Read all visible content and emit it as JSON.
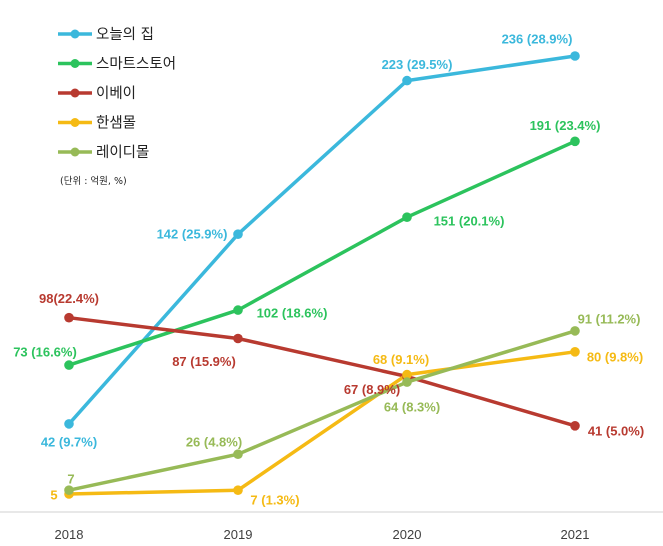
{
  "chart_data": {
    "type": "line",
    "categories": [
      "2018",
      "2019",
      "2020",
      "2021"
    ],
    "unit_note": "(단위 : 억원, %)",
    "series": [
      {
        "name": "오늘의 집",
        "color": "#3BB8DC",
        "values": [
          42,
          142,
          223,
          236
        ],
        "labels": [
          "42 (9.7%)",
          "142 (25.9%)",
          "223 (29.5%)",
          "236 (28.9%)"
        ]
      },
      {
        "name": "스마트스토어",
        "color": "#2CC35D",
        "values": [
          73,
          102,
          151,
          191
        ],
        "labels": [
          "73 (16.6%)",
          "102 (18.6%)",
          "151 (20.1%)",
          "191 (23.4%)"
        ]
      },
      {
        "name": "이베이",
        "color": "#B83A30",
        "values": [
          98,
          87,
          67,
          41
        ],
        "labels": [
          "98(22.4%)",
          "87 (15.9%)",
          "67 (8.9%)",
          "41 (5.0%)"
        ]
      },
      {
        "name": "한샘몰",
        "color": "#F5BA14",
        "values": [
          5,
          7,
          68,
          80
        ],
        "labels": [
          "5",
          "7 (1.3%)",
          "68 (9.1%)",
          "80 (9.8%)"
        ]
      },
      {
        "name": "레이디몰",
        "color": "#97BA57",
        "values": [
          7,
          26,
          64,
          91
        ],
        "labels": [
          "7",
          "26 (4.8%)",
          "64 (8.3%)",
          "91 (11.2%)"
        ]
      }
    ]
  }
}
